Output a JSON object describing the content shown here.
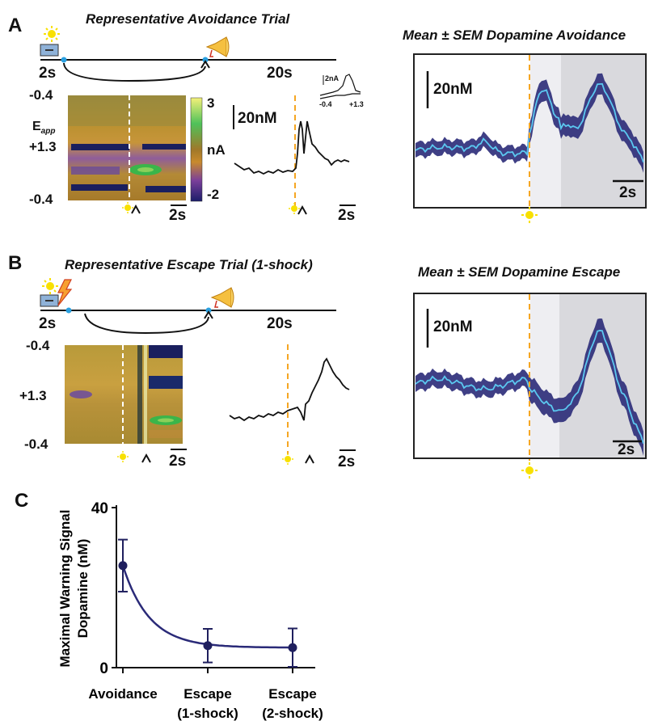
{
  "panel_a": {
    "letter": "A",
    "trial_title": "Representative Avoidance Trial",
    "timeline_left": "2s",
    "timeline_right": "20s",
    "mean_title": "Mean ± SEM Dopamine Avoidance",
    "scale_nm": "20nM",
    "scale_s": "2s",
    "trace_scale_nm": "20nM",
    "heatmap_scale_s": "2s",
    "trace_scale_s": "2s",
    "y_top": "-0.4",
    "y_mid": "+1.3",
    "y_bot": "-0.4",
    "eapp_label": "E",
    "eapp_sub": "app",
    "colorbar_max": "3",
    "colorbar_unit": "nA",
    "colorbar_min": "-2",
    "inset_scale": "2nA",
    "inset_left": "-0.4",
    "inset_right": "+1.3"
  },
  "panel_b": {
    "letter": "B",
    "trial_title": "Representative Escape Trial (1-shock)",
    "timeline_left": "2s",
    "timeline_right": "20s",
    "mean_title": "Mean ± SEM Dopamine Escape",
    "scale_nm": "20nM",
    "scale_s": "2s",
    "heatmap_scale_s": "2s",
    "trace_scale_s": "2s",
    "y_top": "-0.4",
    "y_mid": "+1.3",
    "y_bot": "-0.4"
  },
  "panel_c": {
    "letter": "C",
    "chart_data": {
      "type": "scatter",
      "categories": [
        "Avoidance",
        "Escape (1-shock)",
        "Escape (2-shock)"
      ],
      "category_lines": [
        [
          "Avoidance"
        ],
        [
          "Escape",
          "(1-shock)"
        ],
        [
          "Escape",
          "(2-shock)"
        ]
      ],
      "values": [
        25.5,
        5.5,
        5.0
      ],
      "error": [
        6.5,
        4.2,
        4.8
      ],
      "ylabel_lines": [
        "Maximal Warning Signal",
        "Dopamine (nM)"
      ],
      "ylim": [
        0,
        40
      ],
      "yticks": [
        "0",
        "40"
      ],
      "fit": "exponential decay curve"
    }
  },
  "colors": {
    "warning_line": "#f5a623",
    "mean_line": "#5bc8f0",
    "sem_band": "#2a2a78",
    "shade_light": "#eeeef2",
    "shade_dark": "#d9d9dd",
    "point": "#1f1f5e"
  },
  "icons": [
    "light-cue-icon",
    "lever-icon",
    "shock-bolt-icon",
    "horn-icon",
    "arrowhead-icon"
  ]
}
